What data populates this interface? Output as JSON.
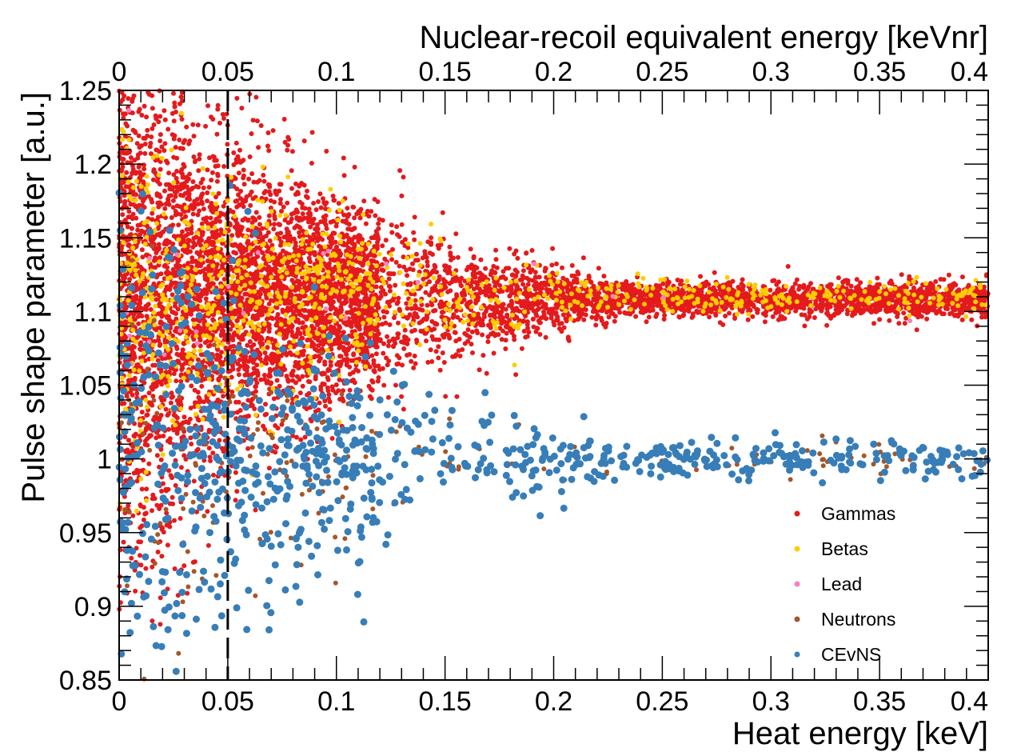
{
  "chart_data": {
    "type": "scatter",
    "title": "",
    "xlabel": "Heat energy [keV]",
    "x2label": "Nuclear-recoil equivalent energy [keVnr]",
    "ylabel": "Pulse shape parameter [a.u.]",
    "xlim": [
      0,
      0.4
    ],
    "x2lim": [
      0,
      0.4
    ],
    "ylim": [
      0.85,
      1.25
    ],
    "xticks": [
      0,
      0.05,
      0.1,
      0.15,
      0.2,
      0.25,
      0.3,
      0.35,
      0.4
    ],
    "xtick_labels": [
      "0",
      "0.05",
      "0.1",
      "0.15",
      "0.2",
      "0.25",
      "0.3",
      "0.35",
      "0.4"
    ],
    "x2tick_labels": [
      "0",
      "0.05",
      "0.1",
      "0.15",
      "0.2",
      "0.25",
      "0.3",
      "0.35",
      "0.4"
    ],
    "yticks": [
      0.85,
      0.9,
      0.95,
      1.0,
      1.05,
      1.1,
      1.15,
      1.2,
      1.25
    ],
    "ytick_labels": [
      "0.85",
      "0.9",
      "0.95",
      "1",
      "1.05",
      "1.1",
      "1.15",
      "1.2",
      "1.25"
    ],
    "threshold_line": {
      "x": 0.05,
      "style": "dashed"
    },
    "legend_position": "bottom-right",
    "series": [
      {
        "name": "Gammas",
        "color": "#e41a1c",
        "marker_radius": 3.0,
        "center": 1.108,
        "sigma_at_0": 0.065,
        "sigma_at_max": 0.006,
        "approx_count": 7000
      },
      {
        "name": "Betas",
        "color": "#ffcc00",
        "marker_radius": 3.0,
        "center": 1.11,
        "sigma_at_0": 0.045,
        "sigma_at_max": 0.006,
        "approx_count": 900
      },
      {
        "name": "Lead",
        "color": "#f781bf",
        "marker_radius": 3.0,
        "center": 1.108,
        "sigma_at_0": 0.03,
        "sigma_at_max": 0.008,
        "approx_count": 25
      },
      {
        "name": "Neutrons",
        "color": "#a65628",
        "marker_radius": 3.0,
        "center": 1.0,
        "sigma_at_0": 0.06,
        "sigma_at_max": 0.006,
        "approx_count": 180
      },
      {
        "name": "CEvNS",
        "color": "#377eb8",
        "marker_radius": 4.5,
        "center": 1.0,
        "sigma_at_0": 0.07,
        "sigma_at_max": 0.006,
        "approx_count": 850
      }
    ]
  }
}
